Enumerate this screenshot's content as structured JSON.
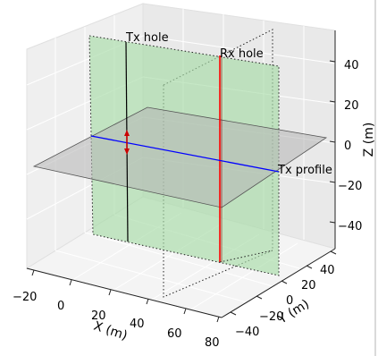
{
  "chart_data": {
    "type": "3d-geometry",
    "title": "",
    "axes": {
      "x": {
        "label": "X (m)",
        "ticks": [
          "−20",
          "0",
          "20",
          "40",
          "60",
          "80"
        ]
      },
      "y": {
        "label": "Y (m)",
        "ticks": [
          "−40",
          "−20",
          "0",
          "20",
          "40"
        ]
      },
      "z": {
        "label": "Z (m)",
        "ticks": [
          "−40",
          "−20",
          "0",
          "20",
          "40"
        ]
      }
    },
    "grid": true,
    "annotations": [
      {
        "id": "tx-hole",
        "text": "Tx hole"
      },
      {
        "id": "rx-hole",
        "text": "Rx hole"
      },
      {
        "id": "tx-profile",
        "text": "Tx profile"
      }
    ],
    "colors": {
      "green_plane": "#a8dca8",
      "horizontal_plane": "#c8c8c8",
      "profile_line": "#0000ff",
      "tx_hole_line": "#000000",
      "rx_hole_line": "#ff0000",
      "source_marker": "#cc0000",
      "pane": "#f2f2f2",
      "grid": "#ffffff"
    }
  }
}
